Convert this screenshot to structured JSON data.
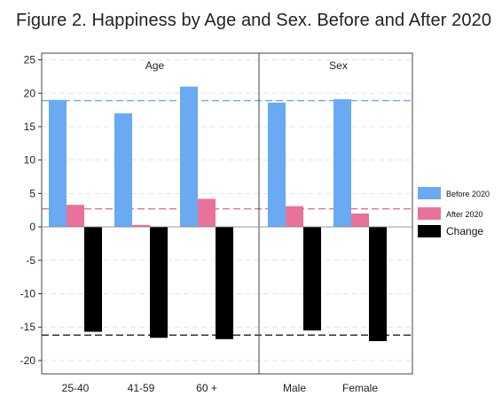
{
  "title": "Figure 2. Happiness by Age and Sex.  Before and After 2020",
  "chart_data": {
    "type": "bar",
    "panels": [
      {
        "label": "Age",
        "categories": [
          "25-40",
          "41-59",
          "60 +"
        ]
      },
      {
        "label": "Sex",
        "categories": [
          "Male",
          "Female"
        ]
      }
    ],
    "categories": [
      "25-40",
      "41-59",
      "60 +",
      "Male",
      "Female"
    ],
    "series": [
      {
        "name": "Before 2020",
        "color": "#6aaaf2",
        "values": [
          19.0,
          17.0,
          21.0,
          18.6,
          19.1
        ]
      },
      {
        "name": "After 2020",
        "color": "#e8729a",
        "values": [
          3.3,
          0.3,
          4.2,
          3.1,
          2.0
        ]
      },
      {
        "name": "Change",
        "color": "#000000",
        "values": [
          -15.7,
          -16.6,
          -16.8,
          -15.5,
          -17.1
        ]
      }
    ],
    "reference_lines": [
      {
        "value": 18.9,
        "color": "#6aaaf2",
        "style": "dashed"
      },
      {
        "value": 2.7,
        "color": "#e8729a",
        "style": "dashed"
      },
      {
        "value": -16.2,
        "color": "#333333",
        "style": "dashed"
      }
    ],
    "ylim": [
      -22,
      26
    ],
    "yticks": [
      25,
      20,
      15,
      10,
      5,
      0,
      -5,
      -10,
      -15,
      -20
    ],
    "grid": true,
    "legend_position": "right"
  }
}
